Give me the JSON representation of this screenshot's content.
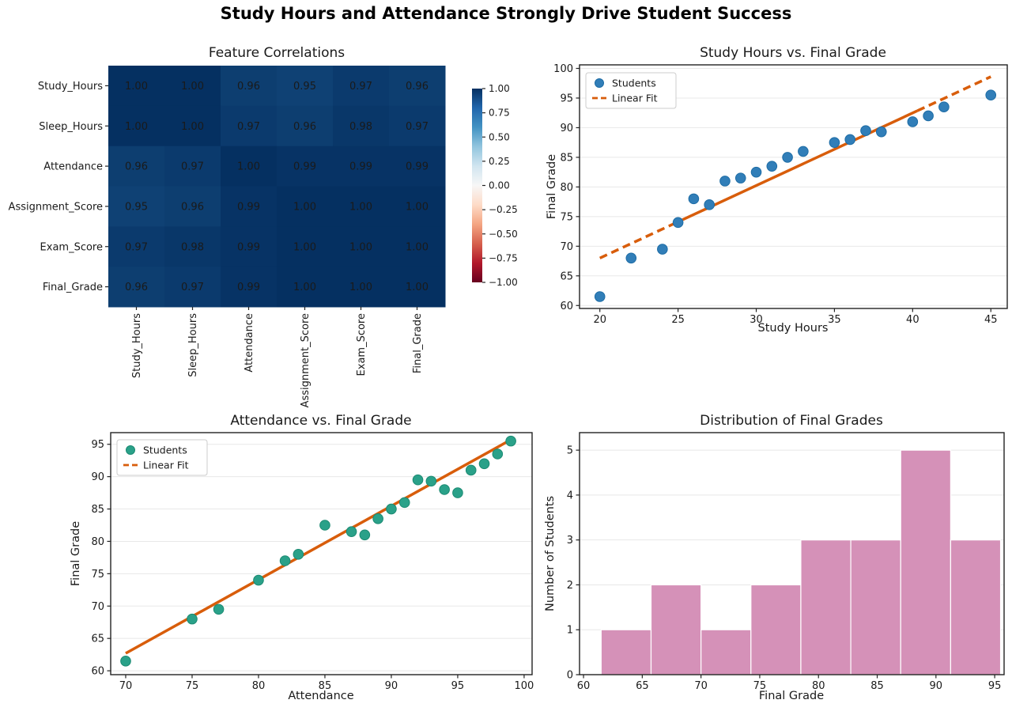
{
  "figure": {
    "suptitle": "Study Hours and Attendance Strongly Drive Student Success",
    "background": "#ffffff"
  },
  "chart_data": [
    {
      "id": "correlation-heatmap",
      "type": "heatmap",
      "title": "Feature Correlations",
      "labels": [
        "Study_Hours",
        "Sleep_Hours",
        "Attendance",
        "Assignment_Score",
        "Exam_Score",
        "Final_Grade"
      ],
      "matrix": [
        [
          1.0,
          1.0,
          0.96,
          0.95,
          0.97,
          0.96
        ],
        [
          1.0,
          1.0,
          0.97,
          0.96,
          0.98,
          0.97
        ],
        [
          0.96,
          0.97,
          1.0,
          0.99,
          0.99,
          0.99
        ],
        [
          0.95,
          0.96,
          0.99,
          1.0,
          1.0,
          1.0
        ],
        [
          0.97,
          0.98,
          0.99,
          1.0,
          1.0,
          1.0
        ],
        [
          0.96,
          0.97,
          0.99,
          1.0,
          1.0,
          1.0
        ]
      ],
      "colormap": "RdBu",
      "vmin": -1.0,
      "vmax": 1.0,
      "colorbar_ticks": [
        "1.00",
        "0.75",
        "0.50",
        "0.25",
        "0.00",
        "−0.25",
        "−0.50",
        "−0.75",
        "−1.00"
      ],
      "value_text_color": "#ffffff"
    },
    {
      "id": "study-scatter",
      "type": "scatter",
      "title": "Study Hours vs. Final Grade",
      "xlabel": "Study Hours",
      "ylabel": "Final Grade",
      "xlim": [
        18.7,
        46.05
      ],
      "ylim": [
        59.5,
        100.6
      ],
      "xticks": [
        20,
        25,
        30,
        35,
        40,
        45
      ],
      "yticks": [
        60,
        65,
        70,
        75,
        80,
        85,
        90,
        95,
        100
      ],
      "grid": "horizontal",
      "legend": {
        "position": "upper left",
        "items": [
          "Students",
          "Linear Fit"
        ]
      },
      "points": [
        [
          20,
          61.5
        ],
        [
          22,
          68
        ],
        [
          24,
          69.5
        ],
        [
          25,
          74
        ],
        [
          26,
          78
        ],
        [
          27,
          77
        ],
        [
          28,
          81
        ],
        [
          29,
          81.5
        ],
        [
          30,
          82.5
        ],
        [
          31,
          83.5
        ],
        [
          32,
          85
        ],
        [
          33,
          86
        ],
        [
          35,
          87.5
        ],
        [
          36,
          88
        ],
        [
          37,
          89.5
        ],
        [
          38,
          89.3
        ],
        [
          40,
          91
        ],
        [
          41,
          92
        ],
        [
          42,
          93.5
        ],
        [
          45,
          95.5
        ]
      ],
      "fit_line": {
        "x": [
          20,
          45
        ],
        "y": [
          68.0,
          98.6
        ]
      },
      "point_color": "#317eb8",
      "point_edge_color": "#1d6ca5",
      "line_color": "#d85d0b"
    },
    {
      "id": "attendance-scatter",
      "type": "scatter",
      "title": "Attendance vs. Final Grade",
      "xlabel": "Attendance",
      "ylabel": "Final Grade",
      "xlim": [
        68.87,
        100.6
      ],
      "ylim": [
        59.4,
        96.8
      ],
      "xticks": [
        70,
        75,
        80,
        85,
        90,
        95,
        100
      ],
      "yticks": [
        60,
        65,
        70,
        75,
        80,
        85,
        90,
        95
      ],
      "grid": "horizontal",
      "legend": {
        "position": "upper left",
        "items": [
          "Students",
          "Linear Fit"
        ]
      },
      "points": [
        [
          70,
          61.5
        ],
        [
          75,
          68
        ],
        [
          77,
          69.5
        ],
        [
          80,
          74
        ],
        [
          82,
          77
        ],
        [
          83,
          78
        ],
        [
          85,
          82.5
        ],
        [
          87,
          81.5
        ],
        [
          88,
          81
        ],
        [
          89,
          83.5
        ],
        [
          90,
          85
        ],
        [
          91,
          86
        ],
        [
          92,
          89.5
        ],
        [
          93,
          89.3
        ],
        [
          94,
          88
        ],
        [
          95,
          87.5
        ],
        [
          96,
          91
        ],
        [
          97,
          92
        ],
        [
          98,
          93.5
        ],
        [
          99,
          95.5
        ]
      ],
      "fit_line": {
        "x": [
          70,
          99
        ],
        "y": [
          62.7,
          95.7
        ]
      },
      "point_color": "#2aa189",
      "point_edge_color": "#1b8a72",
      "line_color": "#d85d0b"
    },
    {
      "id": "grade-histogram",
      "type": "bar",
      "title": "Distribution of Final Grades",
      "xlabel": "Final Grade",
      "ylabel": "Number of Students",
      "xlim": [
        59.66,
        95.8
      ],
      "ylim": [
        0,
        5.39
      ],
      "xticks": [
        60,
        65,
        70,
        75,
        80,
        85,
        90,
        95
      ],
      "yticks": [
        0,
        1,
        2,
        3,
        4,
        5
      ],
      "grid": "horizontal",
      "bin_edges": [
        61.5,
        65.75,
        70.0,
        74.25,
        78.5,
        82.75,
        87.0,
        91.25,
        95.5
      ],
      "counts": [
        1,
        2,
        1,
        2,
        3,
        3,
        5,
        3
      ],
      "bar_color": "#d591b8",
      "bar_edge_color": "#ffffff"
    }
  ]
}
